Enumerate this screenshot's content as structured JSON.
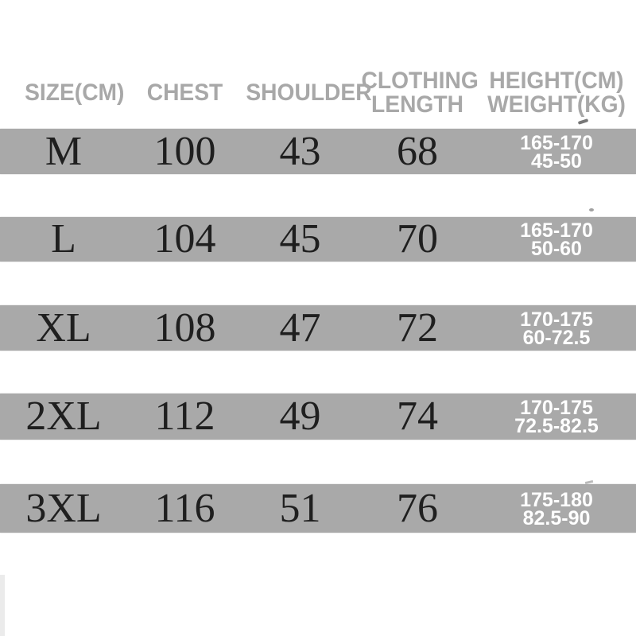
{
  "chart_data": {
    "type": "table",
    "title": "",
    "columns": [
      "SIZE(CM)",
      "CHEST",
      "SHOULDER",
      "CLOTHING LENGTH",
      "HEIGHT(CM) WEIGHT(KG)"
    ],
    "rows": [
      [
        "M",
        "100",
        "43",
        "68",
        "165-170",
        "45-50"
      ],
      [
        "L",
        "104",
        "45",
        "70",
        "165-170",
        "50-60"
      ],
      [
        "XL",
        "108",
        "47",
        "72",
        "170-175",
        "60-72.5"
      ],
      [
        "2XL",
        "112",
        "49",
        "74",
        "170-175",
        "72.5-82.5"
      ],
      [
        "3XL",
        "116",
        "51",
        "76",
        "175-180",
        "82.5-90"
      ]
    ],
    "layout_hints": {
      "striped_rows": true,
      "row_band_color": "#a9a9a9",
      "grid": false
    }
  },
  "header": {
    "size": "SIZE(CM)",
    "chest": "CHEST",
    "shoulder": "SHOULDER",
    "length_line1": "CLOTHING",
    "length_line2": "LENGTH",
    "hw_line1": "HEIGHT(CM)",
    "hw_line2": "WEIGHT(KG)"
  },
  "rows": [
    {
      "size": "M",
      "chest": "100",
      "shoulder": "43",
      "length": "68",
      "height": "165-170",
      "weight": "45-50"
    },
    {
      "size": "L",
      "chest": "104",
      "shoulder": "45",
      "length": "70",
      "height": "165-170",
      "weight": "50-60"
    },
    {
      "size": "XL",
      "chest": "108",
      "shoulder": "47",
      "length": "72",
      "height": "170-175",
      "weight": "60-72.5"
    },
    {
      "size": "2XL",
      "chest": "112",
      "shoulder": "49",
      "length": "74",
      "height": "170-175",
      "weight": "72.5-82.5"
    },
    {
      "size": "3XL",
      "chest": "116",
      "shoulder": "51",
      "length": "76",
      "height": "175-180",
      "weight": "82.5-90"
    }
  ],
  "colors": {
    "background": "#ffffff",
    "band": "#a9a9a9",
    "header_text": "#a8a8a8",
    "value_text": "#1f1f1f",
    "hw_text": "#ffffff"
  }
}
